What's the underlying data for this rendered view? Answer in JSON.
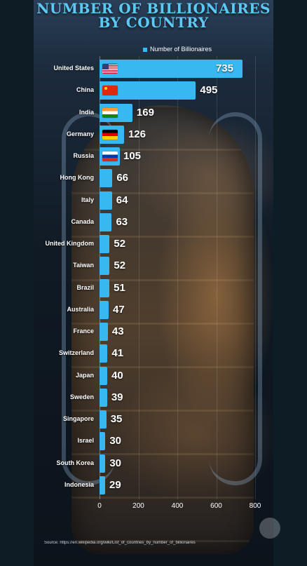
{
  "title_line1": "NUMBER OF BILLIONAIRES",
  "title_line2": "BY COUNTRY",
  "legend_label": "Number of Billionaires",
  "source": "Source: https://en.wikipedia.org/wiki/List_of_countries_by_number_of_billionaires",
  "colors": {
    "bar": "#37b8f0",
    "title": "#5cc8f4"
  },
  "chart_data": {
    "type": "bar",
    "orientation": "horizontal",
    "title": "NUMBER OF BILLIONAIRES BY COUNTRY",
    "legend": "top",
    "xlim": [
      0,
      800
    ],
    "ticks": [
      0,
      200,
      400,
      600,
      800
    ],
    "categories": [
      "United States",
      "China",
      "India",
      "Germany",
      "Russia",
      "Hong Kong",
      "Italy",
      "Canada",
      "United Kingdom",
      "Taiwan",
      "Brazil",
      "Australia",
      "France",
      "Switzerland",
      "Japan",
      "Sweden",
      "Singapore",
      "Israel",
      "South Korea",
      "Indonesia"
    ],
    "series": [
      {
        "name": "Number of Billionaires",
        "values": [
          735,
          495,
          169,
          126,
          105,
          66,
          64,
          63,
          52,
          52,
          51,
          47,
          43,
          41,
          40,
          39,
          35,
          30,
          30,
          29
        ]
      }
    ],
    "flags": [
      "flag-us",
      "flag-cn",
      "flag-in",
      "flag-de",
      "flag-ru"
    ]
  }
}
